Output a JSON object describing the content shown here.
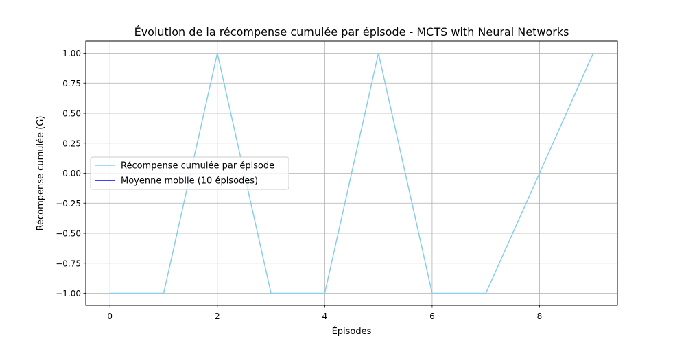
{
  "chart_data": {
    "type": "line",
    "title": "Évolution de la récompense cumulée par épisode - MCTS with Neural Networks",
    "xlabel": "Épisodes",
    "ylabel": "Récompense cumulée (G)",
    "xlim": [
      -0.45,
      9.45
    ],
    "ylim": [
      -1.1,
      1.1
    ],
    "xticks": [
      0,
      2,
      4,
      6,
      8
    ],
    "xtick_labels": [
      "0",
      "2",
      "4",
      "6",
      "8"
    ],
    "yticks": [
      -1.0,
      -0.75,
      -0.5,
      -0.25,
      0.0,
      0.25,
      0.5,
      0.75,
      1.0
    ],
    "ytick_labels": [
      "−1.00",
      "−0.75",
      "−0.50",
      "−0.25",
      "0.00",
      "0.25",
      "0.50",
      "0.75",
      "1.00"
    ],
    "grid": true,
    "legend_position": "center-left",
    "series": [
      {
        "name": "Récompense cumulée par épisode",
        "color": "#87ceeb",
        "x": [
          0,
          1,
          2,
          3,
          4,
          5,
          6,
          7,
          8,
          9
        ],
        "y": [
          -1,
          -1,
          1,
          -1,
          -1,
          1,
          -1,
          -1,
          0,
          1
        ]
      },
      {
        "name": "Moyenne mobile (10 épisodes)",
        "color": "#0000ff",
        "x": [],
        "y": []
      }
    ]
  }
}
